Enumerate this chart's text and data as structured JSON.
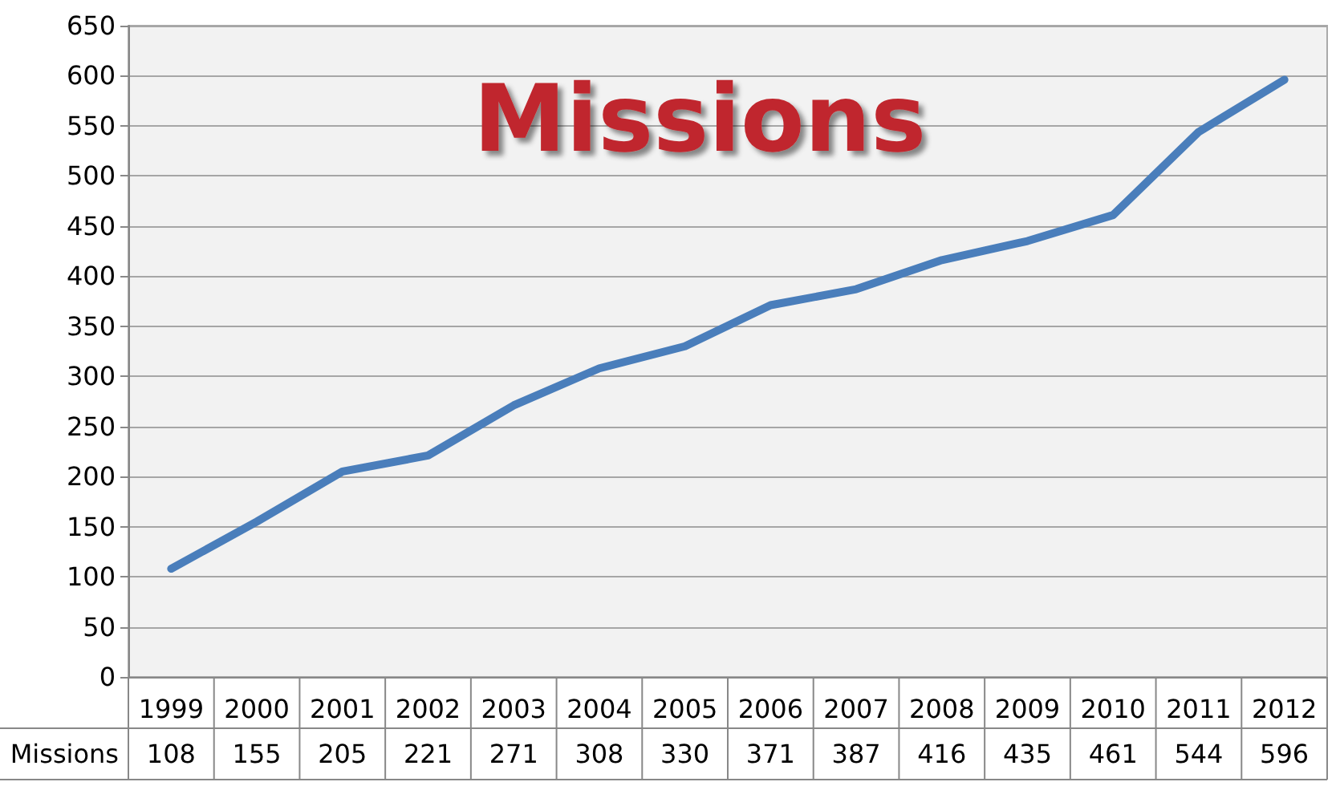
{
  "chart_data": {
    "type": "line",
    "title": "Missions",
    "categories": [
      "1999",
      "2000",
      "2001",
      "2002",
      "2003",
      "2004",
      "2005",
      "2006",
      "2007",
      "2008",
      "2009",
      "2010",
      "2011",
      "2012"
    ],
    "series": [
      {
        "name": "Missions",
        "color": "#4a7ebb",
        "values": [
          108,
          155,
          205,
          221,
          271,
          308,
          330,
          371,
          387,
          416,
          435,
          461,
          544,
          596
        ]
      }
    ],
    "ylim": [
      0,
      650
    ],
    "yticks": [
      0,
      50,
      100,
      150,
      200,
      250,
      300,
      350,
      400,
      450,
      500,
      550,
      600,
      650
    ],
    "grid": "y",
    "legend": false,
    "marker": "none",
    "line_style": "solid",
    "data_labels": true
  }
}
